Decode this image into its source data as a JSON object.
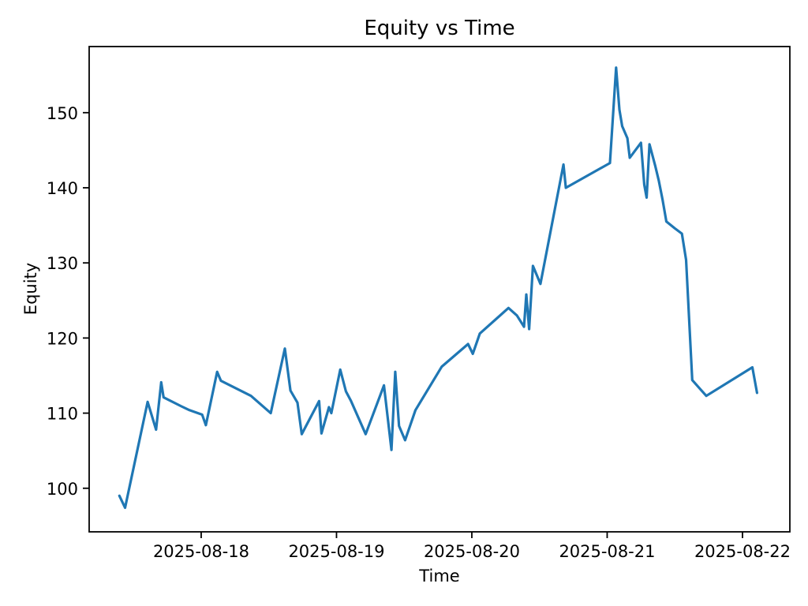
{
  "chart_data": {
    "type": "line",
    "title": "Equity vs Time",
    "xlabel": "Time",
    "ylabel": "Equity",
    "x_ticks": [
      {
        "value": "2025-08-18 00:00",
        "label": "2025-08-18"
      },
      {
        "value": "2025-08-19 00:00",
        "label": "2025-08-19"
      },
      {
        "value": "2025-08-20 00:00",
        "label": "2025-08-20"
      },
      {
        "value": "2025-08-21 00:00",
        "label": "2025-08-21"
      },
      {
        "value": "2025-08-22 00:00",
        "label": "2025-08-22"
      }
    ],
    "y_ticks": [
      100,
      110,
      120,
      130,
      140,
      150
    ],
    "xlim": [
      "2025-08-17 04:08",
      "2025-08-22 08:24"
    ],
    "ylim": [
      94.2,
      158.8
    ],
    "grid": false,
    "legend": false,
    "line_color": "#1f77b4",
    "axis_color": "#000000",
    "background_color": "#ffffff",
    "series": [
      {
        "name": "equity",
        "points": [
          [
            "2025-08-17 09:30",
            99.0
          ],
          [
            "2025-08-17 10:30",
            97.4
          ],
          [
            "2025-08-17 14:30",
            111.5
          ],
          [
            "2025-08-17 16:00",
            107.8
          ],
          [
            "2025-08-17 16:55",
            114.1
          ],
          [
            "2025-08-17 17:20",
            112.1
          ],
          [
            "2025-08-17 20:30",
            110.9
          ],
          [
            "2025-08-17 21:55",
            110.4
          ],
          [
            "2025-08-18 00:10",
            109.8
          ],
          [
            "2025-08-18 00:50",
            108.4
          ],
          [
            "2025-08-18 02:50",
            115.5
          ],
          [
            "2025-08-18 03:30",
            114.3
          ],
          [
            "2025-08-18 08:50",
            112.3
          ],
          [
            "2025-08-18 12:20",
            110.0
          ],
          [
            "2025-08-18 14:50",
            118.6
          ],
          [
            "2025-08-18 15:50",
            113.0
          ],
          [
            "2025-08-18 17:05",
            111.4
          ],
          [
            "2025-08-18 17:50",
            107.2
          ],
          [
            "2025-08-18 20:55",
            111.6
          ],
          [
            "2025-08-18 21:20",
            107.3
          ],
          [
            "2025-08-18 22:40",
            110.8
          ],
          [
            "2025-08-18 23:05",
            110.0
          ],
          [
            "2025-08-19 00:40",
            115.8
          ],
          [
            "2025-08-19 01:40",
            112.9
          ],
          [
            "2025-08-19 02:35",
            111.6
          ],
          [
            "2025-08-19 05:10",
            107.2
          ],
          [
            "2025-08-19 08:25",
            113.7
          ],
          [
            "2025-08-19 09:45",
            105.1
          ],
          [
            "2025-08-19 10:25",
            115.5
          ],
          [
            "2025-08-19 11:05",
            108.3
          ],
          [
            "2025-08-19 12:10",
            106.4
          ],
          [
            "2025-08-19 14:00",
            110.4
          ],
          [
            "2025-08-19 18:40",
            116.2
          ],
          [
            "2025-08-19 23:20",
            119.2
          ],
          [
            "2025-08-20 00:10",
            117.9
          ],
          [
            "2025-08-20 01:25",
            120.6
          ],
          [
            "2025-08-20 06:30",
            124.0
          ],
          [
            "2025-08-20 08:00",
            123.0
          ],
          [
            "2025-08-20 09:15",
            121.5
          ],
          [
            "2025-08-20 09:40",
            125.8
          ],
          [
            "2025-08-20 10:10",
            121.2
          ],
          [
            "2025-08-20 10:50",
            129.6
          ],
          [
            "2025-08-20 12:10",
            127.2
          ],
          [
            "2025-08-20 16:15",
            143.1
          ],
          [
            "2025-08-20 16:40",
            140.0
          ],
          [
            "2025-08-21 00:30",
            143.3
          ],
          [
            "2025-08-21 01:35",
            156.0
          ],
          [
            "2025-08-21 02:10",
            150.4
          ],
          [
            "2025-08-21 02:40",
            148.2
          ],
          [
            "2025-08-21 03:35",
            146.6
          ],
          [
            "2025-08-21 04:00",
            144.0
          ],
          [
            "2025-08-21 06:00",
            146.0
          ],
          [
            "2025-08-21 06:35",
            140.4
          ],
          [
            "2025-08-21 07:00",
            138.7
          ],
          [
            "2025-08-21 07:30",
            145.8
          ],
          [
            "2025-08-21 08:30",
            143.0
          ],
          [
            "2025-08-21 09:10",
            140.9
          ],
          [
            "2025-08-21 09:50",
            138.4
          ],
          [
            "2025-08-21 10:30",
            135.5
          ],
          [
            "2025-08-21 12:00",
            134.6
          ],
          [
            "2025-08-21 13:15",
            133.9
          ],
          [
            "2025-08-21 14:00",
            130.4
          ],
          [
            "2025-08-21 15:05",
            114.4
          ],
          [
            "2025-08-21 17:35",
            112.3
          ],
          [
            "2025-08-22 01:45",
            116.1
          ],
          [
            "2025-08-22 02:35",
            112.7
          ]
        ]
      }
    ]
  }
}
